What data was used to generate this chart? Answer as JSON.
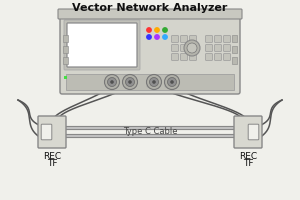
{
  "title": "Vector Network Analyzer",
  "cable_label": "Type C Cable",
  "left_label_line1": "REC",
  "left_label_line2": "TF",
  "right_label_line1": "REC",
  "right_label_line2": "TF",
  "bg_color": "#f0f0eb",
  "vna_color": "#d4d4cc",
  "vna_border": "#888888",
  "screen_color": "#ffffff",
  "screen_border": "#aaaaaa",
  "cable_color": "#555555",
  "usb_body_color": "#d8d8d0",
  "usb_border_color": "#888888"
}
